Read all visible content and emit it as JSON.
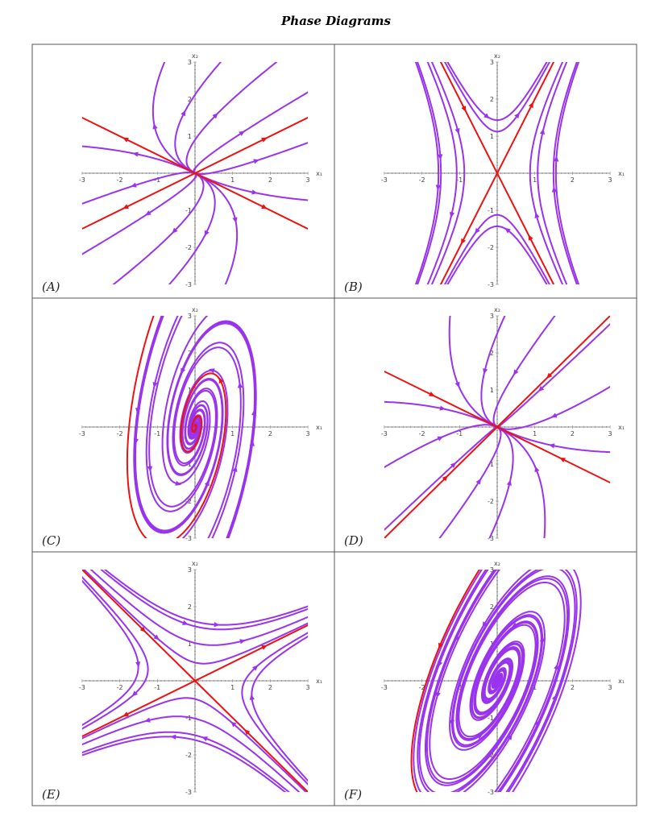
{
  "title": "Phase Diagrams",
  "axis_labels": {
    "x": "x₁",
    "y": "x₂"
  },
  "x_ticks": [
    "-3",
    "-2",
    "-1",
    "1",
    "2",
    "3"
  ],
  "y_ticks": [
    "3",
    "2",
    "1",
    "-1",
    "-2",
    "-3"
  ],
  "panels": [
    {
      "label": "(A)"
    },
    {
      "label": "(B)"
    },
    {
      "label": "(C)"
    },
    {
      "label": "(D)"
    },
    {
      "label": "(E)"
    },
    {
      "label": "(F)"
    }
  ]
}
